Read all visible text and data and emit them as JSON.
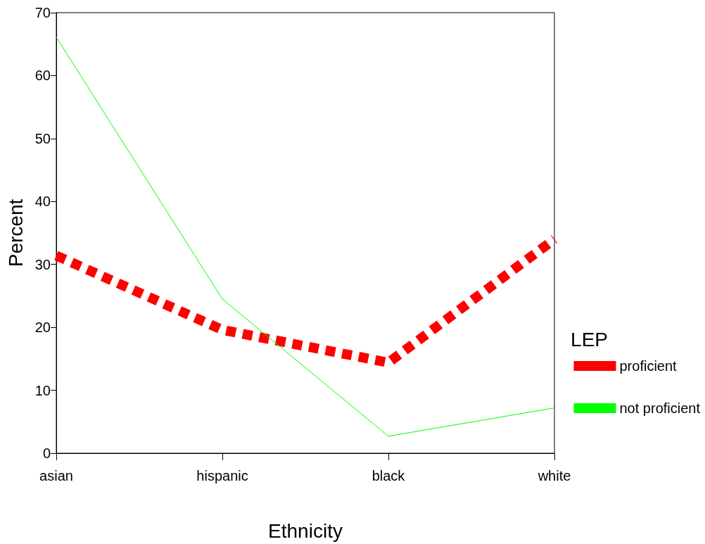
{
  "chart_data": {
    "type": "line",
    "xlabel": "Ethnicity",
    "ylabel": "Percent",
    "legend_title": "LEP",
    "categories": [
      "asian",
      "hispanic",
      "black",
      "white"
    ],
    "series": [
      {
        "name": "proficient",
        "color": "#ff0000",
        "line_style": "dashed",
        "values": [
          31.4,
          19.6,
          14.4,
          34.0
        ]
      },
      {
        "name": "not proficient",
        "color": "#00ff00",
        "line_style": "solid",
        "values": [
          66.1,
          24.5,
          2.7,
          7.2
        ]
      }
    ],
    "ylim": [
      0,
      70
    ],
    "yticks": [
      0,
      10,
      20,
      30,
      40,
      50,
      60,
      70
    ],
    "grid": false,
    "legend": "right",
    "marker": "none"
  }
}
